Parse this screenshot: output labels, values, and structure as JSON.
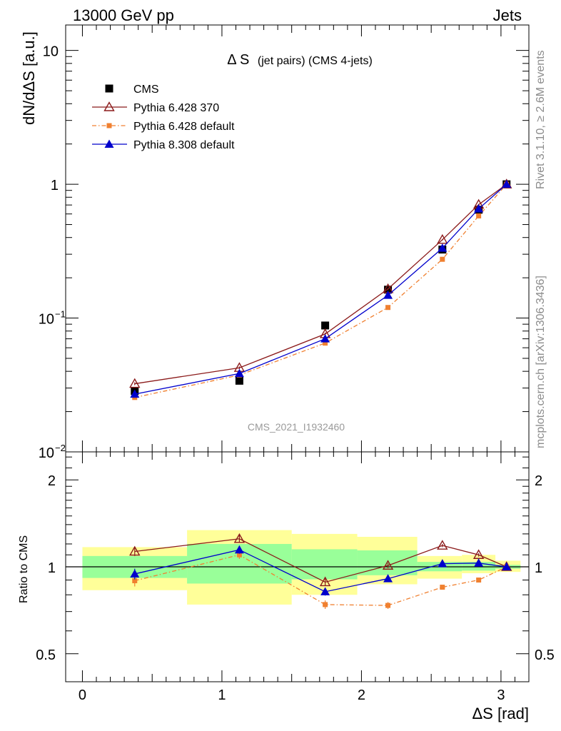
{
  "header": {
    "left": "13000 GeV pp",
    "right": "Jets"
  },
  "side_labels": {
    "rivet": "Rivet 3.1.10, ≥ 2.6M events",
    "source": "mcplots.cern.ch [arXiv:1306.3436]"
  },
  "chart_data": [
    {
      "type": "scatter",
      "title_main": "Δ S",
      "title_sub": "(jet pairs) (CMS 4-jets)",
      "watermark": "CMS_2021_I1932460",
      "ylabel": "dN/dΔS [a.u.]",
      "yscale": "log",
      "ylim": [
        0.01,
        15.5
      ],
      "xlim": [
        -0.12,
        3.2
      ],
      "yticks": [
        {
          "value": 0.01,
          "label": "10",
          "exp": "−2"
        },
        {
          "value": 0.1,
          "label": "10",
          "exp": "−1"
        },
        {
          "value": 1,
          "label": "1",
          "exp": ""
        },
        {
          "value": 10,
          "label": "10",
          "exp": ""
        }
      ],
      "legend_position": "top-left",
      "x": [
        0.375,
        1.125,
        1.74,
        2.19,
        2.58,
        2.84,
        3.04
      ],
      "series": [
        {
          "name": "CMS",
          "marker": "filled-square",
          "color": "#000000",
          "line": "none",
          "values": [
            0.0285,
            0.034,
            0.088,
            0.163,
            0.325,
            0.645,
            1.0
          ]
        },
        {
          "name": "Pythia 6.428 370",
          "marker": "open-triangle",
          "color": "#8b1a1a",
          "line": "solid",
          "values": [
            0.0323,
            0.0425,
            0.076,
            0.165,
            0.385,
            0.705,
            1.0
          ],
          "errors": [
            0.0008,
            0.001,
            0.002,
            0.003,
            0.005,
            0.008,
            0.0
          ]
        },
        {
          "name": "Pythia 6.428 default",
          "marker": "filled-square-small",
          "color": "#f08030",
          "line": "dashdot",
          "values": [
            0.0255,
            0.0375,
            0.065,
            0.12,
            0.275,
            0.58,
            1.0
          ],
          "errors": [
            0.0008,
            0.001,
            0.002,
            0.003,
            0.005,
            0.008,
            0.0
          ]
        },
        {
          "name": "Pythia 8.308 default",
          "marker": "filled-triangle",
          "color": "#0000cc",
          "line": "solid",
          "values": [
            0.027,
            0.0385,
            0.07,
            0.148,
            0.333,
            0.655,
            1.0
          ],
          "errors": [
            0.0008,
            0.001,
            0.002,
            0.003,
            0.005,
            0.008,
            0.0
          ]
        }
      ]
    },
    {
      "type": "scatter",
      "ylabel": "Ratio to CMS",
      "xlabel": "ΔS [rad]",
      "yscale": "log",
      "ylim": [
        0.4,
        2.5
      ],
      "xlim": [
        -0.12,
        3.2
      ],
      "xticks": [
        0,
        1,
        2,
        3
      ],
      "yticks": [
        {
          "value": 0.5,
          "label": "0.5"
        },
        {
          "value": 1,
          "label": "1"
        },
        {
          "value": 2,
          "label": "2"
        }
      ],
      "x": [
        0.375,
        1.125,
        1.74,
        2.19,
        2.58,
        2.84,
        3.04
      ],
      "bands": [
        {
          "x0": 0.0,
          "x1": 0.75,
          "inner": [
            0.915,
            1.09
          ],
          "outer": [
            0.83,
            1.17
          ]
        },
        {
          "x0": 0.75,
          "x1": 1.5,
          "inner": [
            0.875,
            1.2
          ],
          "outer": [
            0.74,
            1.34
          ]
        },
        {
          "x0": 1.5,
          "x1": 1.97,
          "inner": [
            0.905,
            1.15
          ],
          "outer": [
            0.8,
            1.3
          ]
        },
        {
          "x0": 1.97,
          "x1": 2.4,
          "inner": [
            0.935,
            1.14
          ],
          "outer": [
            0.87,
            1.27
          ]
        },
        {
          "x0": 2.4,
          "x1": 2.72,
          "inner": [
            0.965,
            1.04
          ],
          "outer": [
            0.91,
            1.09
          ]
        },
        {
          "x0": 2.72,
          "x1": 2.96,
          "inner": [
            0.97,
            1.04
          ],
          "outer": [
            0.95,
            1.1
          ]
        },
        {
          "x0": 2.96,
          "x1": 3.14,
          "inner": [
            0.985,
            1.015
          ],
          "outer": [
            0.96,
            1.05
          ]
        }
      ],
      "series": [
        {
          "name": "Pythia 6.428 370",
          "color": "#8b1a1a",
          "marker": "open-triangle",
          "line": "solid",
          "values": [
            1.13,
            1.25,
            0.885,
            1.01,
            1.185,
            1.1,
            1.0
          ],
          "errors": [
            0.04,
            0.035,
            0.025,
            0.02,
            0.015,
            0.015,
            0.0
          ]
        },
        {
          "name": "Pythia 6.428 default",
          "color": "#f08030",
          "marker": "filled-square-small",
          "line": "dashdot",
          "values": [
            0.895,
            1.1,
            0.74,
            0.735,
            0.85,
            0.9,
            1.0
          ],
          "errors": [
            0.04,
            0.035,
            0.025,
            0.02,
            0.015,
            0.015,
            0.0
          ]
        },
        {
          "name": "Pythia 8.308 default",
          "color": "#0000cc",
          "marker": "filled-triangle",
          "line": "solid",
          "values": [
            0.945,
            1.145,
            0.82,
            0.91,
            1.025,
            1.03,
            1.0
          ],
          "errors": [
            0.04,
            0.035,
            0.025,
            0.02,
            0.015,
            0.015,
            0.0
          ]
        }
      ]
    }
  ]
}
